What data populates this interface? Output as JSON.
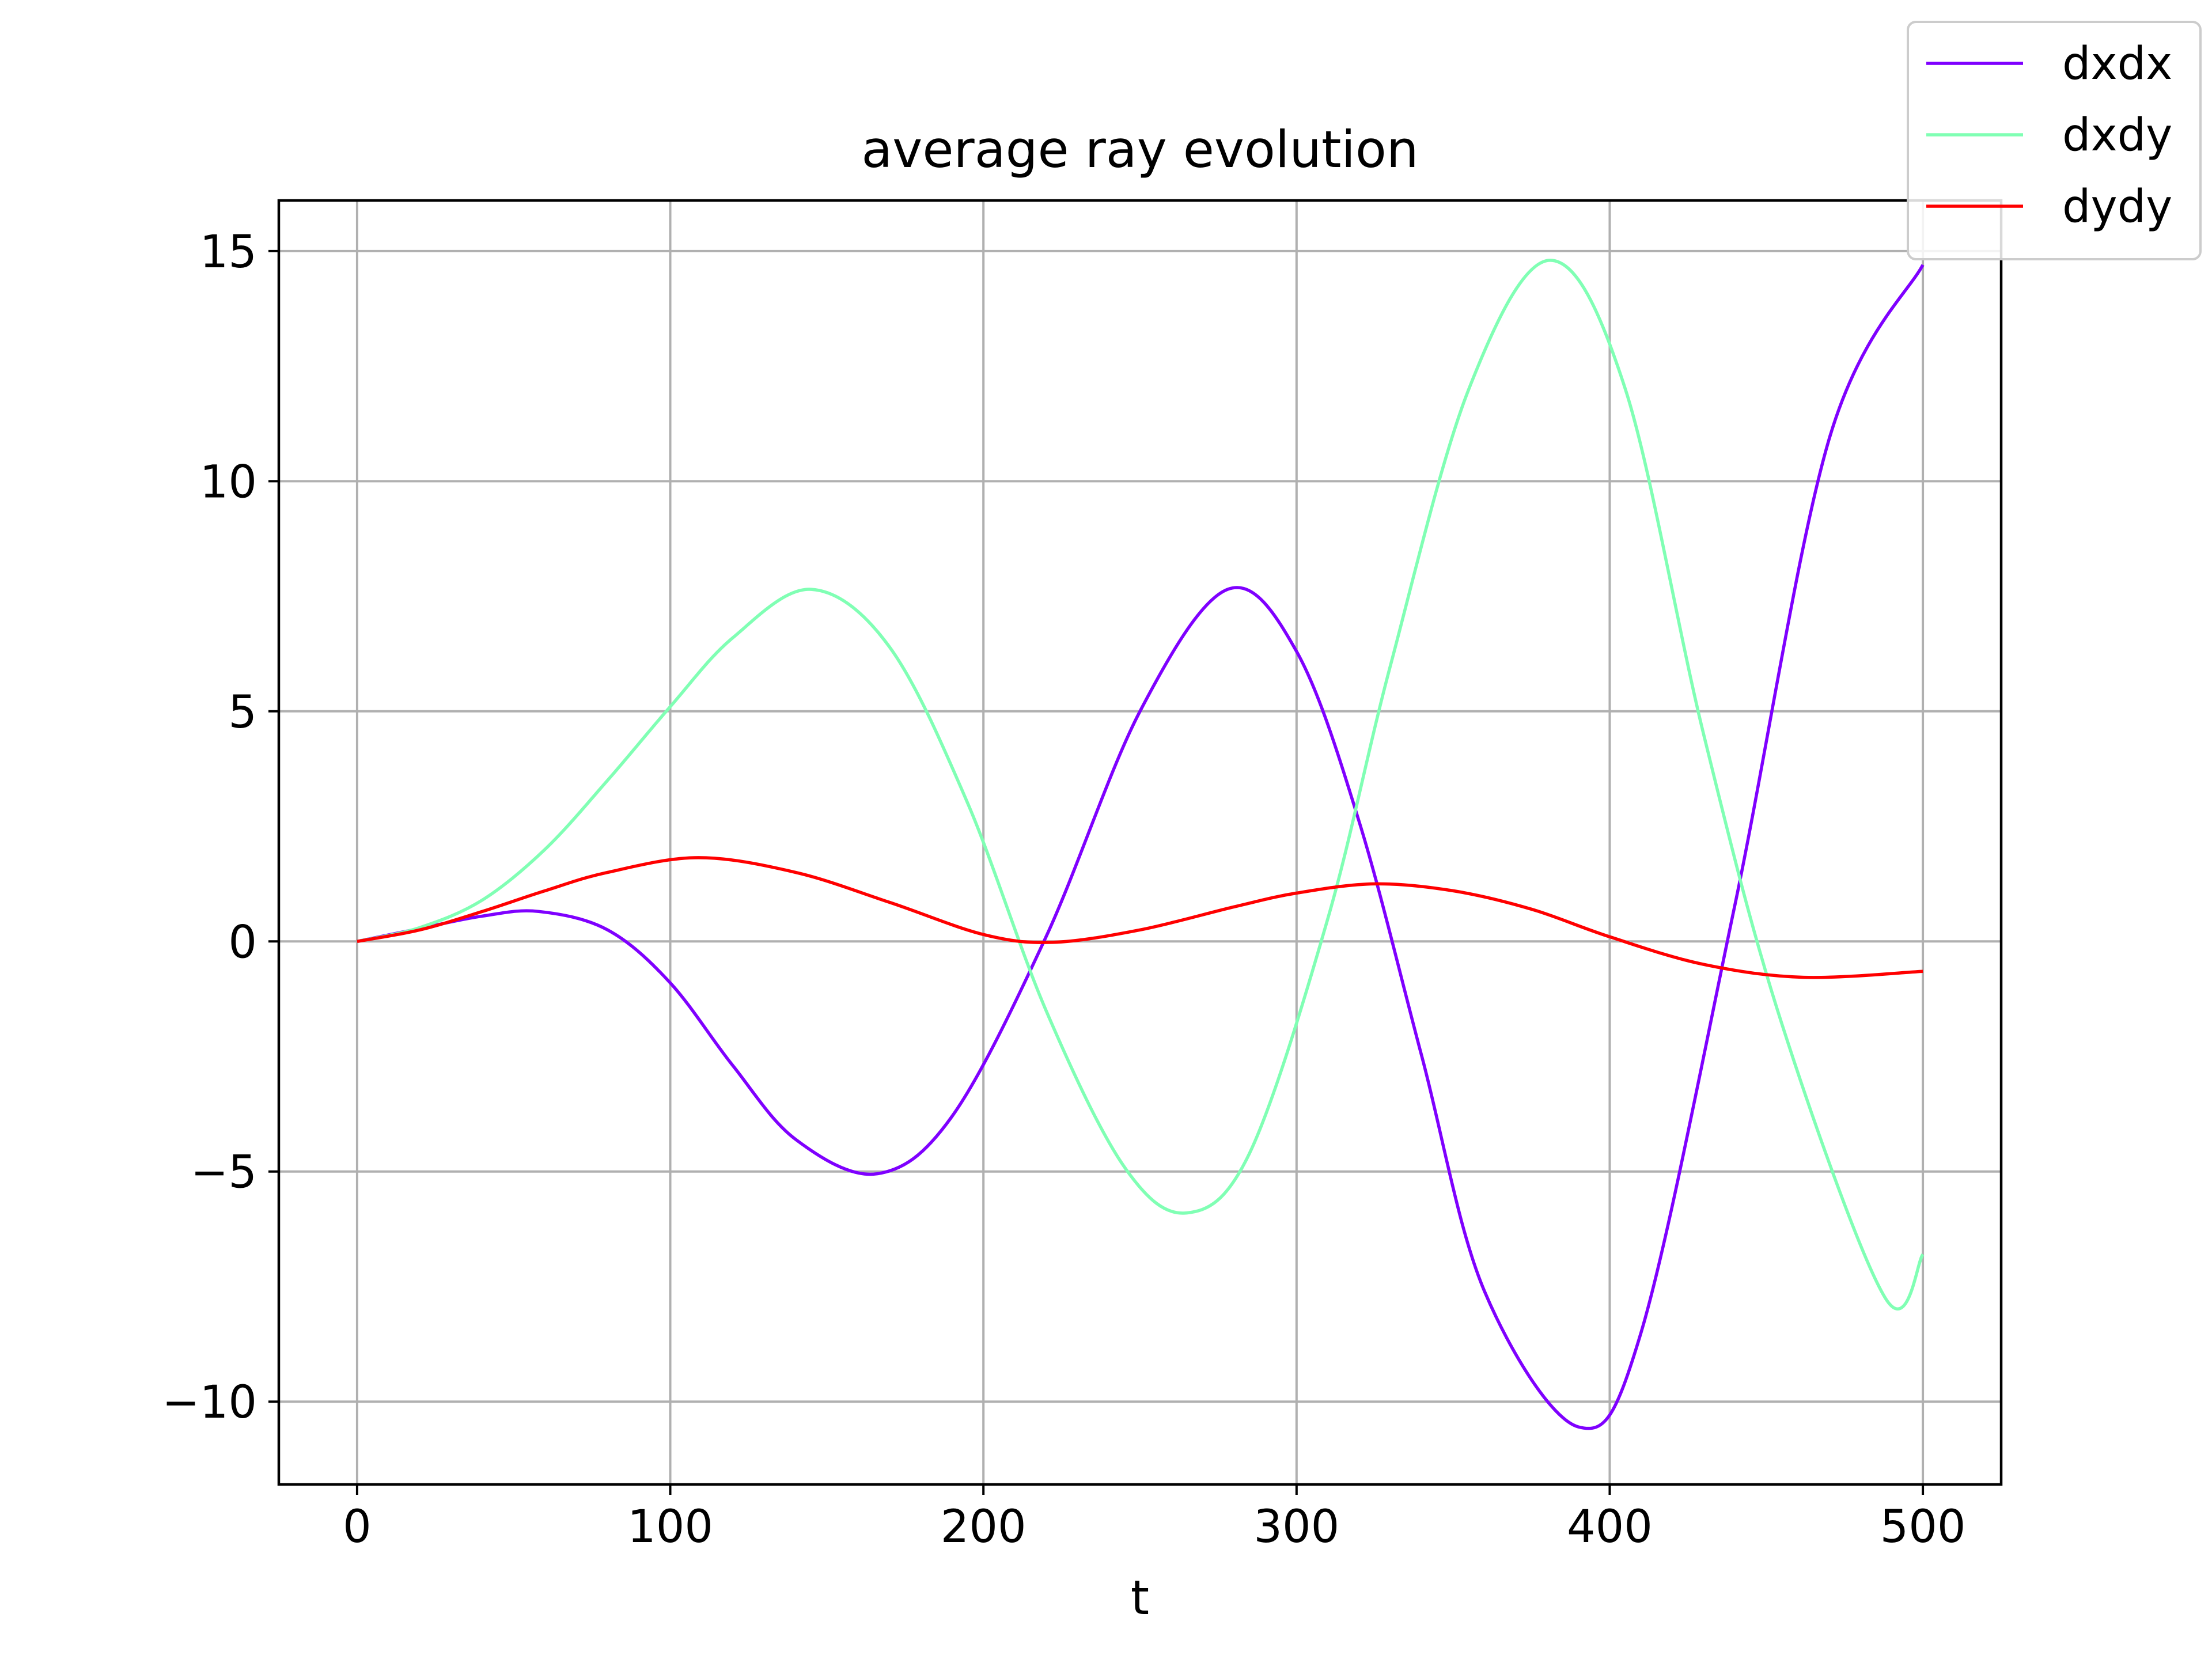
{
  "chart_data": {
    "type": "line",
    "title": "average ray evolution",
    "xlabel": "t",
    "ylabel": "",
    "xlim": [
      -25,
      525
    ],
    "ylim": [
      -11.8,
      16.1
    ],
    "xticks": [
      0,
      100,
      200,
      300,
      400,
      500
    ],
    "yticks": [
      -10,
      -5,
      0,
      5,
      10,
      15
    ],
    "xtick_labels": [
      "0",
      "100",
      "200",
      "300",
      "400",
      "500"
    ],
    "ytick_labels": [
      "−10",
      "−5",
      "0",
      "5",
      "10",
      "15"
    ],
    "grid": true,
    "legend_position": "top-right (outside axes)",
    "series": [
      {
        "name": "dxdx",
        "color": "#7f00ff",
        "x": [
          0,
          20,
          40,
          58,
          80,
          100,
          120,
          140,
          166,
          190,
          220,
          250,
          278,
          300,
          320,
          340,
          360,
          390,
          410,
          440,
          470,
          500
        ],
        "y": [
          0,
          0.28,
          0.55,
          0.65,
          0.25,
          -0.9,
          -2.7,
          -4.3,
          -5.05,
          -3.8,
          0.1,
          5.0,
          7.65,
          6.3,
          2.6,
          -2.5,
          -7.6,
          -10.55,
          -8.5,
          0.8,
          10.9,
          14.7
        ]
      },
      {
        "name": "dxdy",
        "color": "#80ffb4",
        "x": [
          0,
          20,
          40,
          60,
          80,
          100,
          120,
          145,
          170,
          195,
          220,
          245,
          265,
          285,
          310,
          330,
          355,
          381,
          405,
          430,
          455,
          488,
          500
        ],
        "y": [
          0,
          0.3,
          0.9,
          2.0,
          3.5,
          5.1,
          6.6,
          7.65,
          6.4,
          3.0,
          -1.5,
          -4.9,
          -5.9,
          -4.6,
          0.5,
          6.0,
          12.0,
          14.8,
          12.0,
          4.5,
          -1.8,
          -7.75,
          -6.8
        ]
      },
      {
        "name": "dydy",
        "color": "#ff0000",
        "x": [
          0,
          20,
          40,
          60,
          80,
          109,
          140,
          170,
          200,
          222,
          250,
          280,
          300,
          325,
          350,
          375,
          400,
          430,
          462,
          500
        ],
        "y": [
          0,
          0.25,
          0.65,
          1.1,
          1.5,
          1.82,
          1.5,
          0.85,
          0.15,
          -0.02,
          0.25,
          0.75,
          1.05,
          1.25,
          1.1,
          0.7,
          0.1,
          -0.5,
          -0.78,
          -0.65
        ]
      }
    ]
  }
}
